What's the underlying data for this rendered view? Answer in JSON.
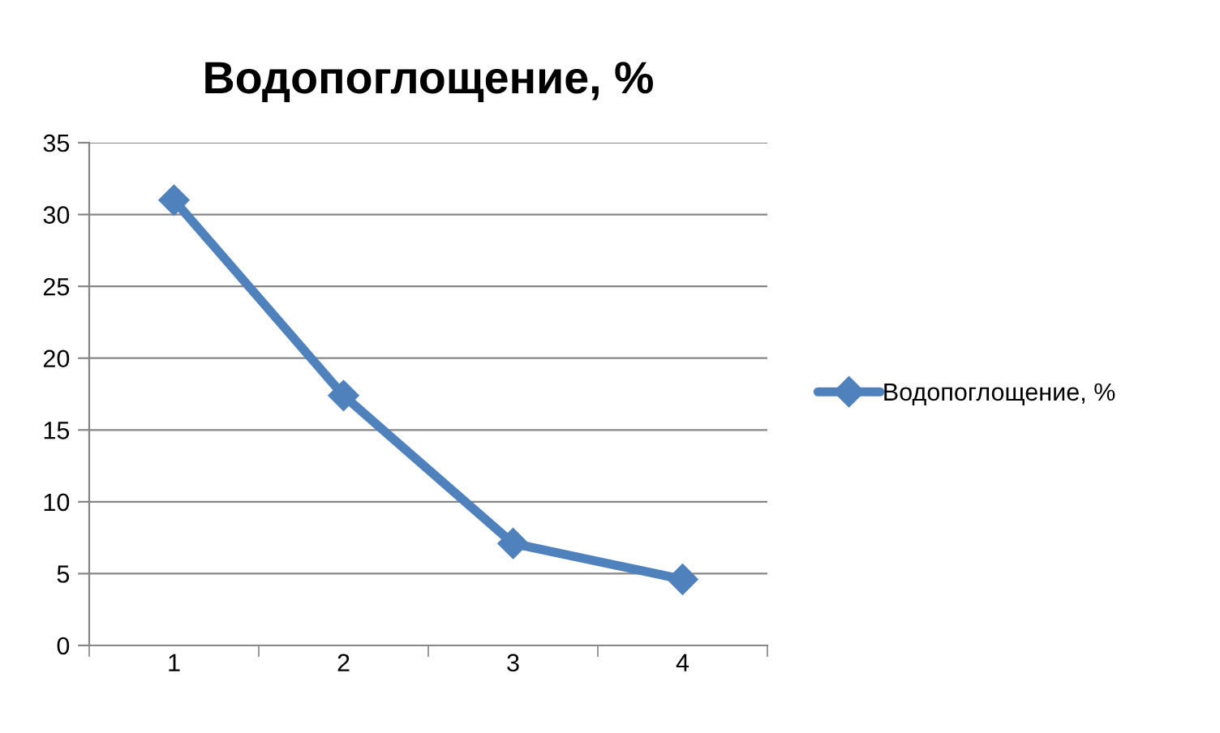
{
  "chart_data": {
    "type": "line",
    "title": "Водопоглощение, %",
    "categories": [
      "1",
      "2",
      "3",
      "4"
    ],
    "series": [
      {
        "name": "Водопоглощение, %",
        "color": "#4f81bd",
        "values": [
          31,
          17.4,
          7.1,
          4.6
        ]
      }
    ],
    "ylim": [
      0,
      35
    ],
    "yticks": [
      0,
      5,
      10,
      15,
      20,
      25,
      30,
      35
    ],
    "grid": "y",
    "legend": "right",
    "marker": "diamond",
    "line_style": "solid"
  }
}
